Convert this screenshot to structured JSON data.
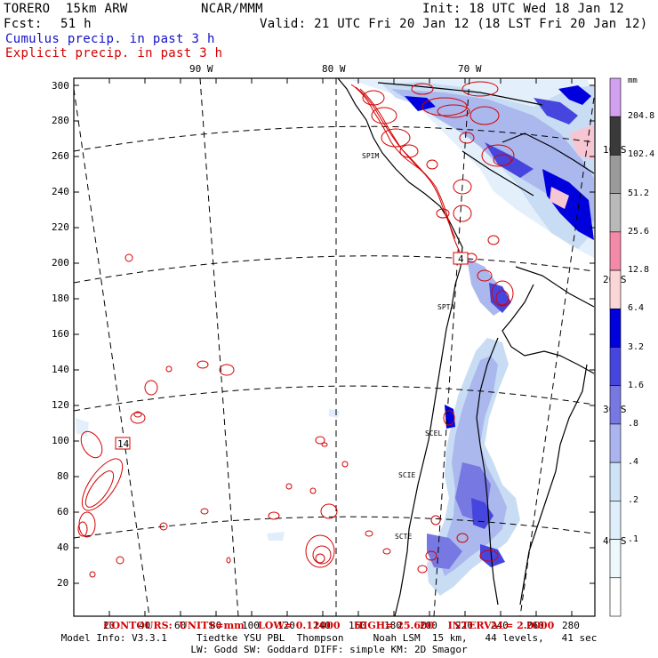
{
  "header": {
    "model": "TORERO  15km ARW",
    "center": "NCAR/MMM",
    "init": "Init: 18 UTC Wed 18 Jan 12",
    "fcst_label": "Fcst:",
    "fcst_value": "51 h",
    "valid": "Valid: 21 UTC Fri 20 Jan 12 (18 LST Fri 20 Jan 12)",
    "field1": "Cumulus precip. in past 3 h",
    "field2": "Explicit precip. in past 3 h"
  },
  "colors": {
    "field1": "#1010c8",
    "field2": "#d40000",
    "frame": "#000000"
  },
  "axes": {
    "y_ticks": [
      "20",
      "40",
      "60",
      "80",
      "100",
      "120",
      "140",
      "160",
      "180",
      "200",
      "220",
      "240",
      "260",
      "280",
      "300"
    ],
    "x_ticks": [
      "20",
      "40",
      "60",
      "80",
      "100",
      "120",
      "140",
      "160",
      "180",
      "200",
      "220",
      "240",
      "260",
      "280"
    ],
    "lon_labels": [
      "90 W",
      "80 W",
      "70 W"
    ],
    "lat_labels": [
      "10 S",
      "20 S",
      "30 S",
      "40 S"
    ]
  },
  "map_labels": {
    "box1": "4",
    "box2": "14",
    "stations": [
      "SPIM",
      "SPTA",
      "SCEL",
      "SCIE",
      "SCTE"
    ]
  },
  "legend": {
    "unit": "mm",
    "levels": [
      "204.8",
      "102.4",
      "51.2",
      "25.6",
      "12.8",
      "6.4",
      "3.2",
      "1.6",
      ".8",
      ".4",
      ".2",
      ".1"
    ],
    "colors": [
      "#d2a0ee",
      "#3a3a3a",
      "#9a9a9a",
      "#b9b9b9",
      "#f28aa8",
      "#fbd6d6",
      "#0000dc",
      "#4646de",
      "#7878e2",
      "#aab4ee",
      "#cfe3f7",
      "#dfeefa",
      "#edf8fc",
      "#ffffff"
    ]
  },
  "footer": {
    "contours": "CONTOURS:  UNITS=mm    LOW= 0.12000    HIGH= 25.600    INTERVAL= 2.0000",
    "info1": "Model Info: V3.3.1     Tiedtke YSU PBL  Thompson     Noah LSM  15 km,   44 levels,   41 sec",
    "info2": "LW: Godd SW: Goddard DIFF: simple KM: 2D Smagor"
  }
}
